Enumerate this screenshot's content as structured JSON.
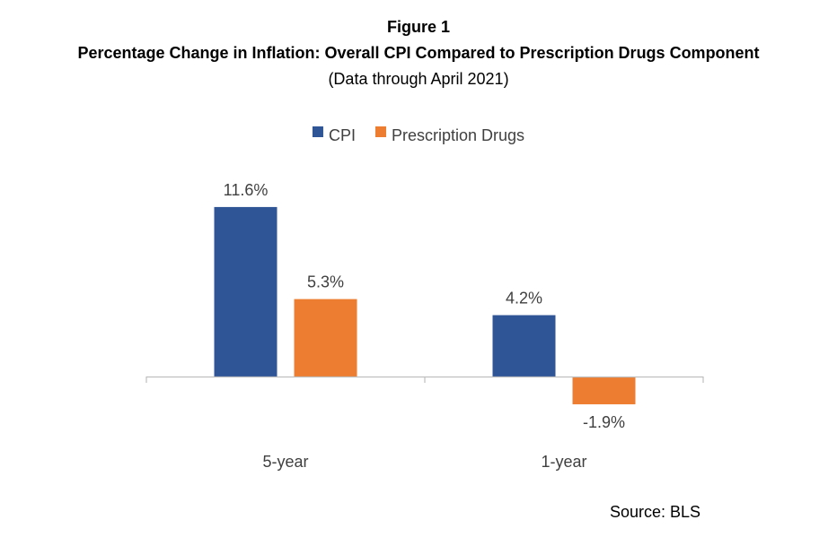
{
  "figure": {
    "label": "Figure 1",
    "title": "Percentage Change in Inflation: Overall CPI Compared to Prescription Drugs Component",
    "subtitle": "(Data through April 2021)",
    "source": "Source: BLS"
  },
  "chart_data": {
    "type": "bar",
    "title": "Percentage Change in Inflation: Overall CPI Compared to Prescription Drugs Component",
    "subtitle": "(Data through April 2021)",
    "categories": [
      "5-year",
      "1-year"
    ],
    "series": [
      {
        "name": "CPI",
        "color": "#2F5597",
        "values": [
          11.6,
          4.2
        ],
        "labels": [
          "11.6%",
          "4.2%"
        ]
      },
      {
        "name": "Prescription Drugs",
        "color": "#ED7D31",
        "values": [
          5.3,
          -1.9
        ],
        "labels": [
          "5.3%",
          "-1.9%"
        ]
      }
    ],
    "value_unit": "%",
    "legend_position": "top",
    "grid": false,
    "y_axis_visible": false,
    "baseline": 0,
    "ylim": [
      -2.5,
      13
    ]
  }
}
